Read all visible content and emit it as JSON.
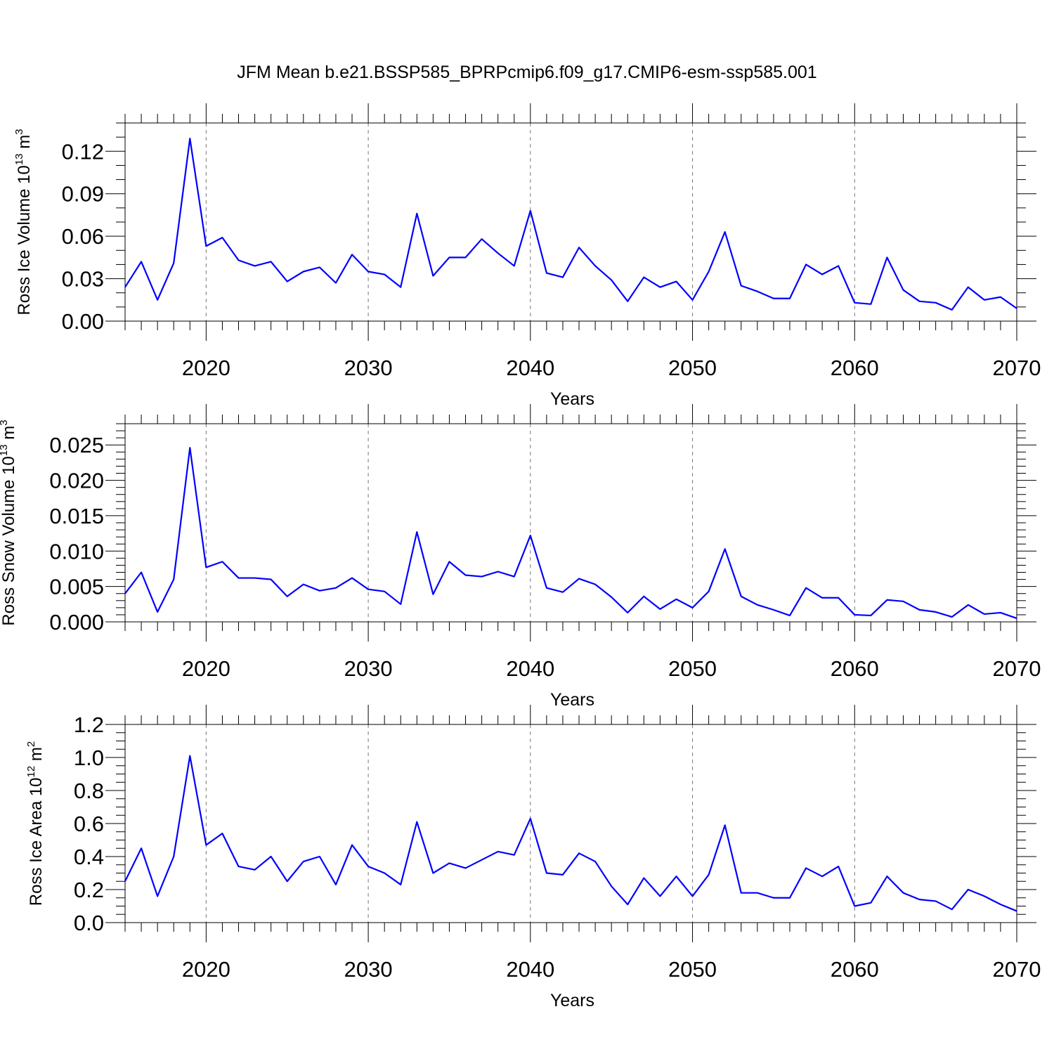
{
  "figure": {
    "title": "JFM Mean b.e21.BSSP585_BPRPcmip6.f09_g17.CMIP6-esm-ssp585.001",
    "line_color": "#0000ff"
  },
  "chart_data": [
    {
      "type": "line",
      "title": "",
      "xlabel": "Years",
      "ylabel": "Ross Ice Volume 10",
      "ylabel_exp": "13",
      "ylabel_unit": " m",
      "ylabel_unit_exp": "3",
      "xlim": [
        2015,
        2070
      ],
      "ylim": [
        0.0,
        0.14
      ],
      "yticks": [
        0.0,
        0.03,
        0.06,
        0.09,
        0.12
      ],
      "ytick_labels": [
        "0.00",
        "0.03",
        "0.06",
        "0.09",
        "0.12"
      ],
      "yminor_step": 0.01,
      "xticks": [
        2020,
        2030,
        2040,
        2050,
        2060,
        2070
      ],
      "xtick_labels": [
        "2020",
        "2030",
        "2040",
        "2050",
        "2060",
        "2070"
      ],
      "grid": "dashed vertical lines at major x ticks",
      "x": [
        2015,
        2016,
        2017,
        2018,
        2019,
        2020,
        2021,
        2022,
        2023,
        2024,
        2025,
        2026,
        2027,
        2028,
        2029,
        2030,
        2031,
        2032,
        2033,
        2034,
        2035,
        2036,
        2037,
        2038,
        2039,
        2040,
        2041,
        2042,
        2043,
        2044,
        2045,
        2046,
        2047,
        2048,
        2049,
        2050,
        2051,
        2052,
        2053,
        2054,
        2055,
        2056,
        2057,
        2058,
        2059,
        2060,
        2061,
        2062,
        2063,
        2064,
        2065,
        2066,
        2067,
        2068,
        2069,
        2070
      ],
      "series": [
        {
          "values": [
            0.024,
            0.042,
            0.015,
            0.041,
            0.129,
            0.053,
            0.059,
            0.043,
            0.039,
            0.042,
            0.028,
            0.035,
            0.038,
            0.027,
            0.047,
            0.035,
            0.033,
            0.024,
            0.076,
            0.032,
            0.045,
            0.045,
            0.058,
            0.048,
            0.039,
            0.078,
            0.034,
            0.031,
            0.052,
            0.039,
            0.029,
            0.014,
            0.031,
            0.024,
            0.028,
            0.015,
            0.035,
            0.063,
            0.025,
            0.021,
            0.016,
            0.016,
            0.04,
            0.033,
            0.039,
            0.013,
            0.012,
            0.045,
            0.022,
            0.014,
            0.013,
            0.008,
            0.024,
            0.015,
            0.017,
            0.009
          ]
        }
      ]
    },
    {
      "type": "line",
      "title": "",
      "xlabel": "Years",
      "ylabel": "Ross Snow Volume 10",
      "ylabel_exp": "13",
      "ylabel_unit": " m",
      "ylabel_unit_exp": "3",
      "xlim": [
        2015,
        2070
      ],
      "ylim": [
        0.0,
        0.028
      ],
      "yticks": [
        0.0,
        0.005,
        0.01,
        0.015,
        0.02,
        0.025
      ],
      "ytick_labels": [
        "0.000",
        "0.005",
        "0.010",
        "0.015",
        "0.020",
        "0.025"
      ],
      "yminor_step": 0.001,
      "xticks": [
        2020,
        2030,
        2040,
        2050,
        2060,
        2070
      ],
      "xtick_labels": [
        "2020",
        "2030",
        "2040",
        "2050",
        "2060",
        "2070"
      ],
      "grid": "dashed vertical lines at major x ticks",
      "x": [
        2015,
        2016,
        2017,
        2018,
        2019,
        2020,
        2021,
        2022,
        2023,
        2024,
        2025,
        2026,
        2027,
        2028,
        2029,
        2030,
        2031,
        2032,
        2033,
        2034,
        2035,
        2036,
        2037,
        2038,
        2039,
        2040,
        2041,
        2042,
        2043,
        2044,
        2045,
        2046,
        2047,
        2048,
        2049,
        2050,
        2051,
        2052,
        2053,
        2054,
        2055,
        2056,
        2057,
        2058,
        2059,
        2060,
        2061,
        2062,
        2063,
        2064,
        2065,
        2066,
        2067,
        2068,
        2069,
        2070
      ],
      "series": [
        {
          "values": [
            0.004,
            0.007,
            0.0014,
            0.006,
            0.0246,
            0.0077,
            0.0085,
            0.0062,
            0.0062,
            0.006,
            0.0036,
            0.0053,
            0.0044,
            0.0048,
            0.0062,
            0.0046,
            0.0043,
            0.0025,
            0.0127,
            0.0039,
            0.0085,
            0.0066,
            0.0064,
            0.0071,
            0.0064,
            0.0122,
            0.0048,
            0.0042,
            0.0061,
            0.0053,
            0.0035,
            0.0013,
            0.0036,
            0.0018,
            0.0032,
            0.002,
            0.0043,
            0.0103,
            0.0036,
            0.0024,
            0.0017,
            0.0009,
            0.0048,
            0.0034,
            0.0034,
            0.001,
            0.0009,
            0.0031,
            0.0029,
            0.0017,
            0.0014,
            0.0007,
            0.0024,
            0.0011,
            0.0013,
            0.0005
          ]
        }
      ]
    },
    {
      "type": "line",
      "title": "",
      "xlabel": "Years",
      "ylabel": "Ross Ice Area 10",
      "ylabel_exp": "12",
      "ylabel_unit": " m",
      "ylabel_unit_exp": "2",
      "xlim": [
        2015,
        2070
      ],
      "ylim": [
        0.0,
        1.2
      ],
      "yticks": [
        0.0,
        0.2,
        0.4,
        0.6,
        0.8,
        1.0,
        1.2
      ],
      "ytick_labels": [
        "0.0",
        "0.2",
        "0.4",
        "0.6",
        "0.8",
        "1.0",
        "1.2"
      ],
      "yminor_step": 0.05,
      "xticks": [
        2020,
        2030,
        2040,
        2050,
        2060,
        2070
      ],
      "xtick_labels": [
        "2020",
        "2030",
        "2040",
        "2050",
        "2060",
        "2070"
      ],
      "grid": "dashed vertical lines at major x ticks",
      "x": [
        2015,
        2016,
        2017,
        2018,
        2019,
        2020,
        2021,
        2022,
        2023,
        2024,
        2025,
        2026,
        2027,
        2028,
        2029,
        2030,
        2031,
        2032,
        2033,
        2034,
        2035,
        2036,
        2037,
        2038,
        2039,
        2040,
        2041,
        2042,
        2043,
        2044,
        2045,
        2046,
        2047,
        2048,
        2049,
        2050,
        2051,
        2052,
        2053,
        2054,
        2055,
        2056,
        2057,
        2058,
        2059,
        2060,
        2061,
        2062,
        2063,
        2064,
        2065,
        2066,
        2067,
        2068,
        2069,
        2070
      ],
      "series": [
        {
          "values": [
            0.25,
            0.45,
            0.16,
            0.4,
            1.01,
            0.47,
            0.54,
            0.34,
            0.32,
            0.4,
            0.25,
            0.37,
            0.4,
            0.23,
            0.47,
            0.34,
            0.3,
            0.23,
            0.61,
            0.3,
            0.36,
            0.33,
            0.38,
            0.43,
            0.41,
            0.63,
            0.3,
            0.29,
            0.42,
            0.37,
            0.22,
            0.11,
            0.27,
            0.16,
            0.28,
            0.16,
            0.29,
            0.59,
            0.18,
            0.18,
            0.15,
            0.15,
            0.33,
            0.28,
            0.34,
            0.1,
            0.12,
            0.28,
            0.18,
            0.14,
            0.13,
            0.08,
            0.2,
            0.16,
            0.11,
            0.07
          ]
        }
      ]
    }
  ]
}
